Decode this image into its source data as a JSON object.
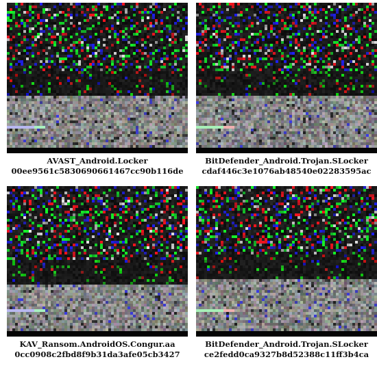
{
  "panels": [
    {
      "family": "AVAST_Android.Locker",
      "hash": "00ee9561c5830690661467cc90b116de"
    },
    {
      "family": "BitDefender_Android.Trojan.SLocker",
      "hash": "cdaf446c3e1076ab48540e02283595ac"
    },
    {
      "family": "KAV_Ransom.AndroidOS.Congur.aa",
      "hash": "0cc0908c2fbd8f9b31da3afe05cb3427"
    },
    {
      "family": "BitDefender_Android.Trojan.SLocker",
      "hash": "ce2fedd0ca9327b8d52388c11ff3b4ca"
    }
  ]
}
